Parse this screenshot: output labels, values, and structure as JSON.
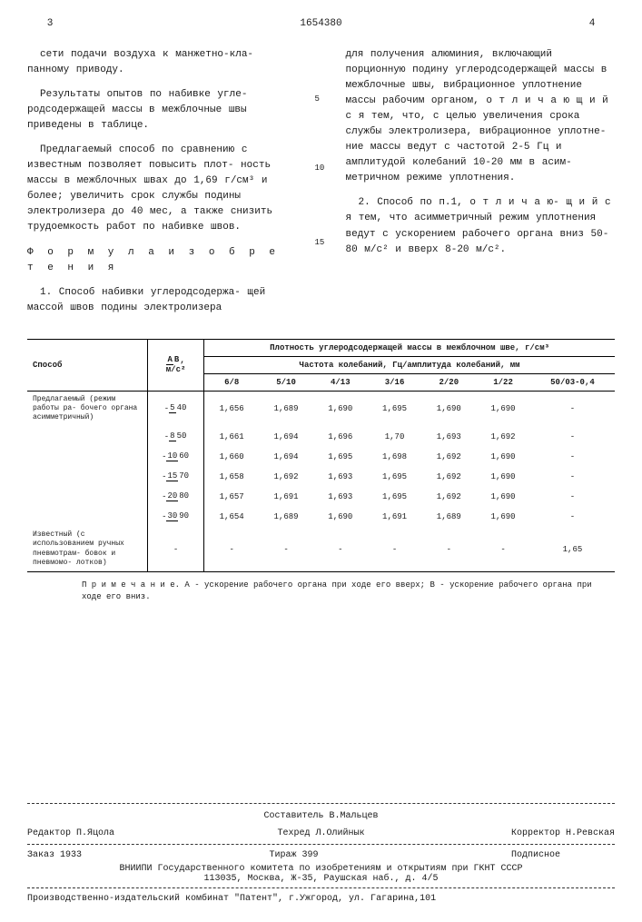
{
  "header": {
    "left_page": "3",
    "doc_number": "1654380",
    "right_page": "4"
  },
  "left_column": {
    "p1": "сети подачи воздуха к манжетно-кла- панному приводу.",
    "p2": "Результаты опытов по набивке угле- родсодержащей массы в межблочные швы приведены в таблице.",
    "p3": "Предлагаемый способ по сравнению с известным позволяет повысить плот- ность массы в межблочных швах до 1,69 г/см³ и более; увеличить срок службы подины электролизера до 40 мес, а также снизить трудоемкость работ по набивке швов.",
    "formula_title": "Ф о р м у л а   и з о б р е т е н и я",
    "p4": "1. Способ набивки углеродсодержа- щей массой швов подины электролизера"
  },
  "right_column": {
    "p1": "для получения алюминия, включающий порционную подину углеродсодержащей массы в межблочные швы, вибрационное уплотнение массы рабочим органом, о т л и ч а ю щ и й с я   тем, что, с целью   увеличения срока службы электролизера, вибрационное уплотне- ние массы ведут с частотой 2-5 Гц и амплитудой колебаний 10-20 мм в асим- метричном режиме уплотнения.",
    "p2": "2. Способ по п.1, о т л и ч а ю- щ и й с я   тем, что асимметричный режим уплотнения ведут с ускорением рабочего органа вниз 50-80 м/с² и вверх 8-20 м/с²."
  },
  "line_numbers": [
    "5",
    "10",
    "15"
  ],
  "table": {
    "header_main": "Плотность углеродсодержащей массы в межблочном шве, г/см³",
    "header_sub": "Частота колебаний, Гц/амплитуда колебаний, мм",
    "col1_header": "Способ",
    "col2_header_top": "А",
    "col2_header_mid": "В",
    "col2_header_bot": "м/с²",
    "freq_headers": [
      "6/8",
      "5/10",
      "4/13",
      "3/16",
      "2/20",
      "1/22",
      "50/03-0,4"
    ],
    "rows": [
      {
        "label": "Предлагаемый (режим работы ра- бочего органа асимметричный)",
        "ratio_num": "5",
        "ratio_den": "40",
        "values": [
          "1,656",
          "1,689",
          "1,690",
          "1,695",
          "1,690",
          "1,690",
          "-"
        ]
      },
      {
        "label": "",
        "ratio_num": "8",
        "ratio_den": "50",
        "values": [
          "1,661",
          "1,694",
          "1,696",
          "1,70",
          "1,693",
          "1,692",
          "-"
        ]
      },
      {
        "label": "",
        "ratio_num": "10",
        "ratio_den": "60",
        "values": [
          "1,660",
          "1,694",
          "1,695",
          "1,698",
          "1,692",
          "1,690",
          "-"
        ]
      },
      {
        "label": "",
        "ratio_num": "15",
        "ratio_den": "70",
        "values": [
          "1,658",
          "1,692",
          "1,693",
          "1,695",
          "1,692",
          "1,690",
          "-"
        ]
      },
      {
        "label": "",
        "ratio_num": "20",
        "ratio_den": "80",
        "values": [
          "1,657",
          "1,691",
          "1,693",
          "1,695",
          "1,692",
          "1,690",
          "-"
        ]
      },
      {
        "label": "",
        "ratio_num": "30",
        "ratio_den": "90",
        "values": [
          "1,654",
          "1,689",
          "1,690",
          "1,691",
          "1,689",
          "1,690",
          "-"
        ]
      },
      {
        "label": "Известный (с использованием ручных пневмотрам- бовок и пневмомо- лотков)",
        "ratio_num": "",
        "ratio_den": "",
        "values": [
          "-",
          "-",
          "-",
          "-",
          "-",
          "-",
          "1,65"
        ]
      }
    ],
    "note": "П р и м е ч а н и е. А - ускорение рабочего органа при ходе его вверх; В - ускорение рабочего органа при ходе его вниз."
  },
  "footer": {
    "compiler_label": "Составитель",
    "compiler_name": "В.Мальцев",
    "editor_label": "Редактор",
    "editor_name": "П.Яцола",
    "techred_label": "Техред",
    "techred_name": "Л.Олийнык",
    "corrector_label": "Корректор",
    "corrector_name": "Н.Ревская",
    "order": "Заказ 1933",
    "tirage": "Тираж 399",
    "subscribe": "Подписное",
    "org": "ВНИИПИ Государственного комитета по изобретениям и открытиям при ГКНТ СССР",
    "address": "113035, Москва, Ж-35, Раушская наб., д. 4/5",
    "printer": "Производственно-издательский комбинат \"Патент\", г.Ужгород, ул. Гагарина,101"
  }
}
